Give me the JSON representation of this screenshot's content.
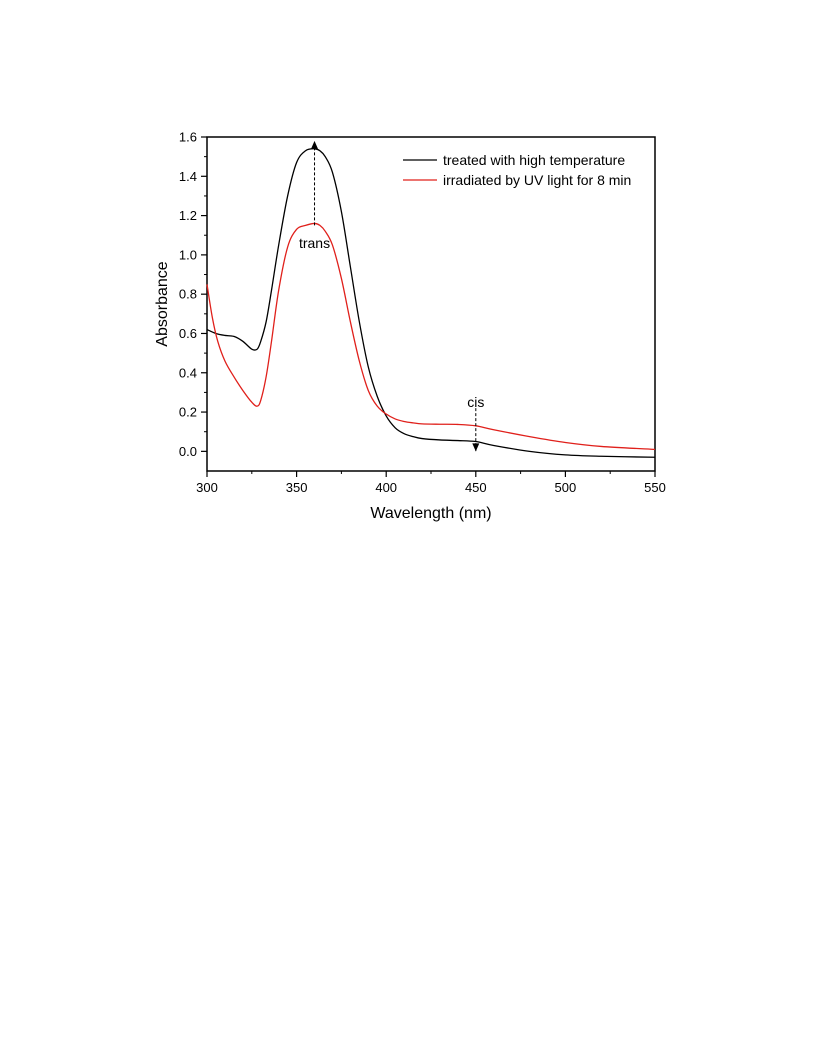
{
  "chart_data": {
    "type": "line",
    "xlabel": "Wavelength (nm)",
    "ylabel": "Absorbance",
    "xlim": [
      300,
      550
    ],
    "ylim": [
      -0.1,
      1.6
    ],
    "xticks": [
      300,
      350,
      400,
      450,
      500,
      550
    ],
    "xtick_labels": [
      "300",
      "350",
      "400",
      "450",
      "500",
      "550"
    ],
    "yticks": [
      0.0,
      0.2,
      0.4,
      0.6,
      0.8,
      1.0,
      1.2,
      1.4,
      1.6
    ],
    "ytick_labels": [
      "0.0",
      "0.2",
      "0.4",
      "0.6",
      "0.8",
      "1.0",
      "1.2",
      "1.4",
      "1.6"
    ],
    "grid": false,
    "legend_position": "top-right",
    "series": [
      {
        "name": "treated with high temperature",
        "color": "#000000",
        "x": [
          300,
          305,
          310,
          315,
          320,
          325,
          328,
          330,
          333,
          336,
          340,
          345,
          350,
          355,
          360,
          363,
          366,
          370,
          375,
          380,
          385,
          390,
          395,
          400,
          405,
          410,
          415,
          420,
          430,
          440,
          450,
          460,
          480,
          500,
          520,
          550
        ],
        "y": [
          0.62,
          0.6,
          0.59,
          0.585,
          0.56,
          0.52,
          0.52,
          0.56,
          0.66,
          0.82,
          1.05,
          1.3,
          1.47,
          1.53,
          1.54,
          1.53,
          1.5,
          1.42,
          1.22,
          0.94,
          0.66,
          0.43,
          0.28,
          0.18,
          0.12,
          0.09,
          0.075,
          0.065,
          0.058,
          0.055,
          0.05,
          0.03,
          0.0,
          -0.018,
          -0.025,
          -0.03
        ]
      },
      {
        "name": "irradiated by UV light for 8 min",
        "color": "#e0201b",
        "x": [
          300,
          303,
          306,
          310,
          315,
          320,
          325,
          328,
          330,
          333,
          336,
          340,
          345,
          350,
          355,
          360,
          363,
          366,
          370,
          375,
          380,
          385,
          390,
          395,
          400,
          405,
          410,
          415,
          420,
          430,
          440,
          450,
          460,
          480,
          500,
          520,
          550
        ],
        "y": [
          0.85,
          0.68,
          0.56,
          0.46,
          0.38,
          0.31,
          0.25,
          0.23,
          0.26,
          0.38,
          0.56,
          0.82,
          1.04,
          1.13,
          1.15,
          1.16,
          1.15,
          1.12,
          1.05,
          0.88,
          0.66,
          0.46,
          0.31,
          0.23,
          0.19,
          0.165,
          0.152,
          0.145,
          0.14,
          0.138,
          0.137,
          0.13,
          0.11,
          0.075,
          0.045,
          0.025,
          0.01
        ]
      }
    ],
    "annotations": [
      {
        "text": "trans",
        "arrow_x": 360,
        "arrow_from": 1.15,
        "arrow_to": 1.58,
        "label_x": 360,
        "label_y": 1.06,
        "direction": "up"
      },
      {
        "text": "cis",
        "arrow_x": 450,
        "arrow_from": 0.22,
        "arrow_to": 0.0,
        "label_x": 450,
        "label_y": 0.25,
        "direction": "down"
      }
    ]
  }
}
